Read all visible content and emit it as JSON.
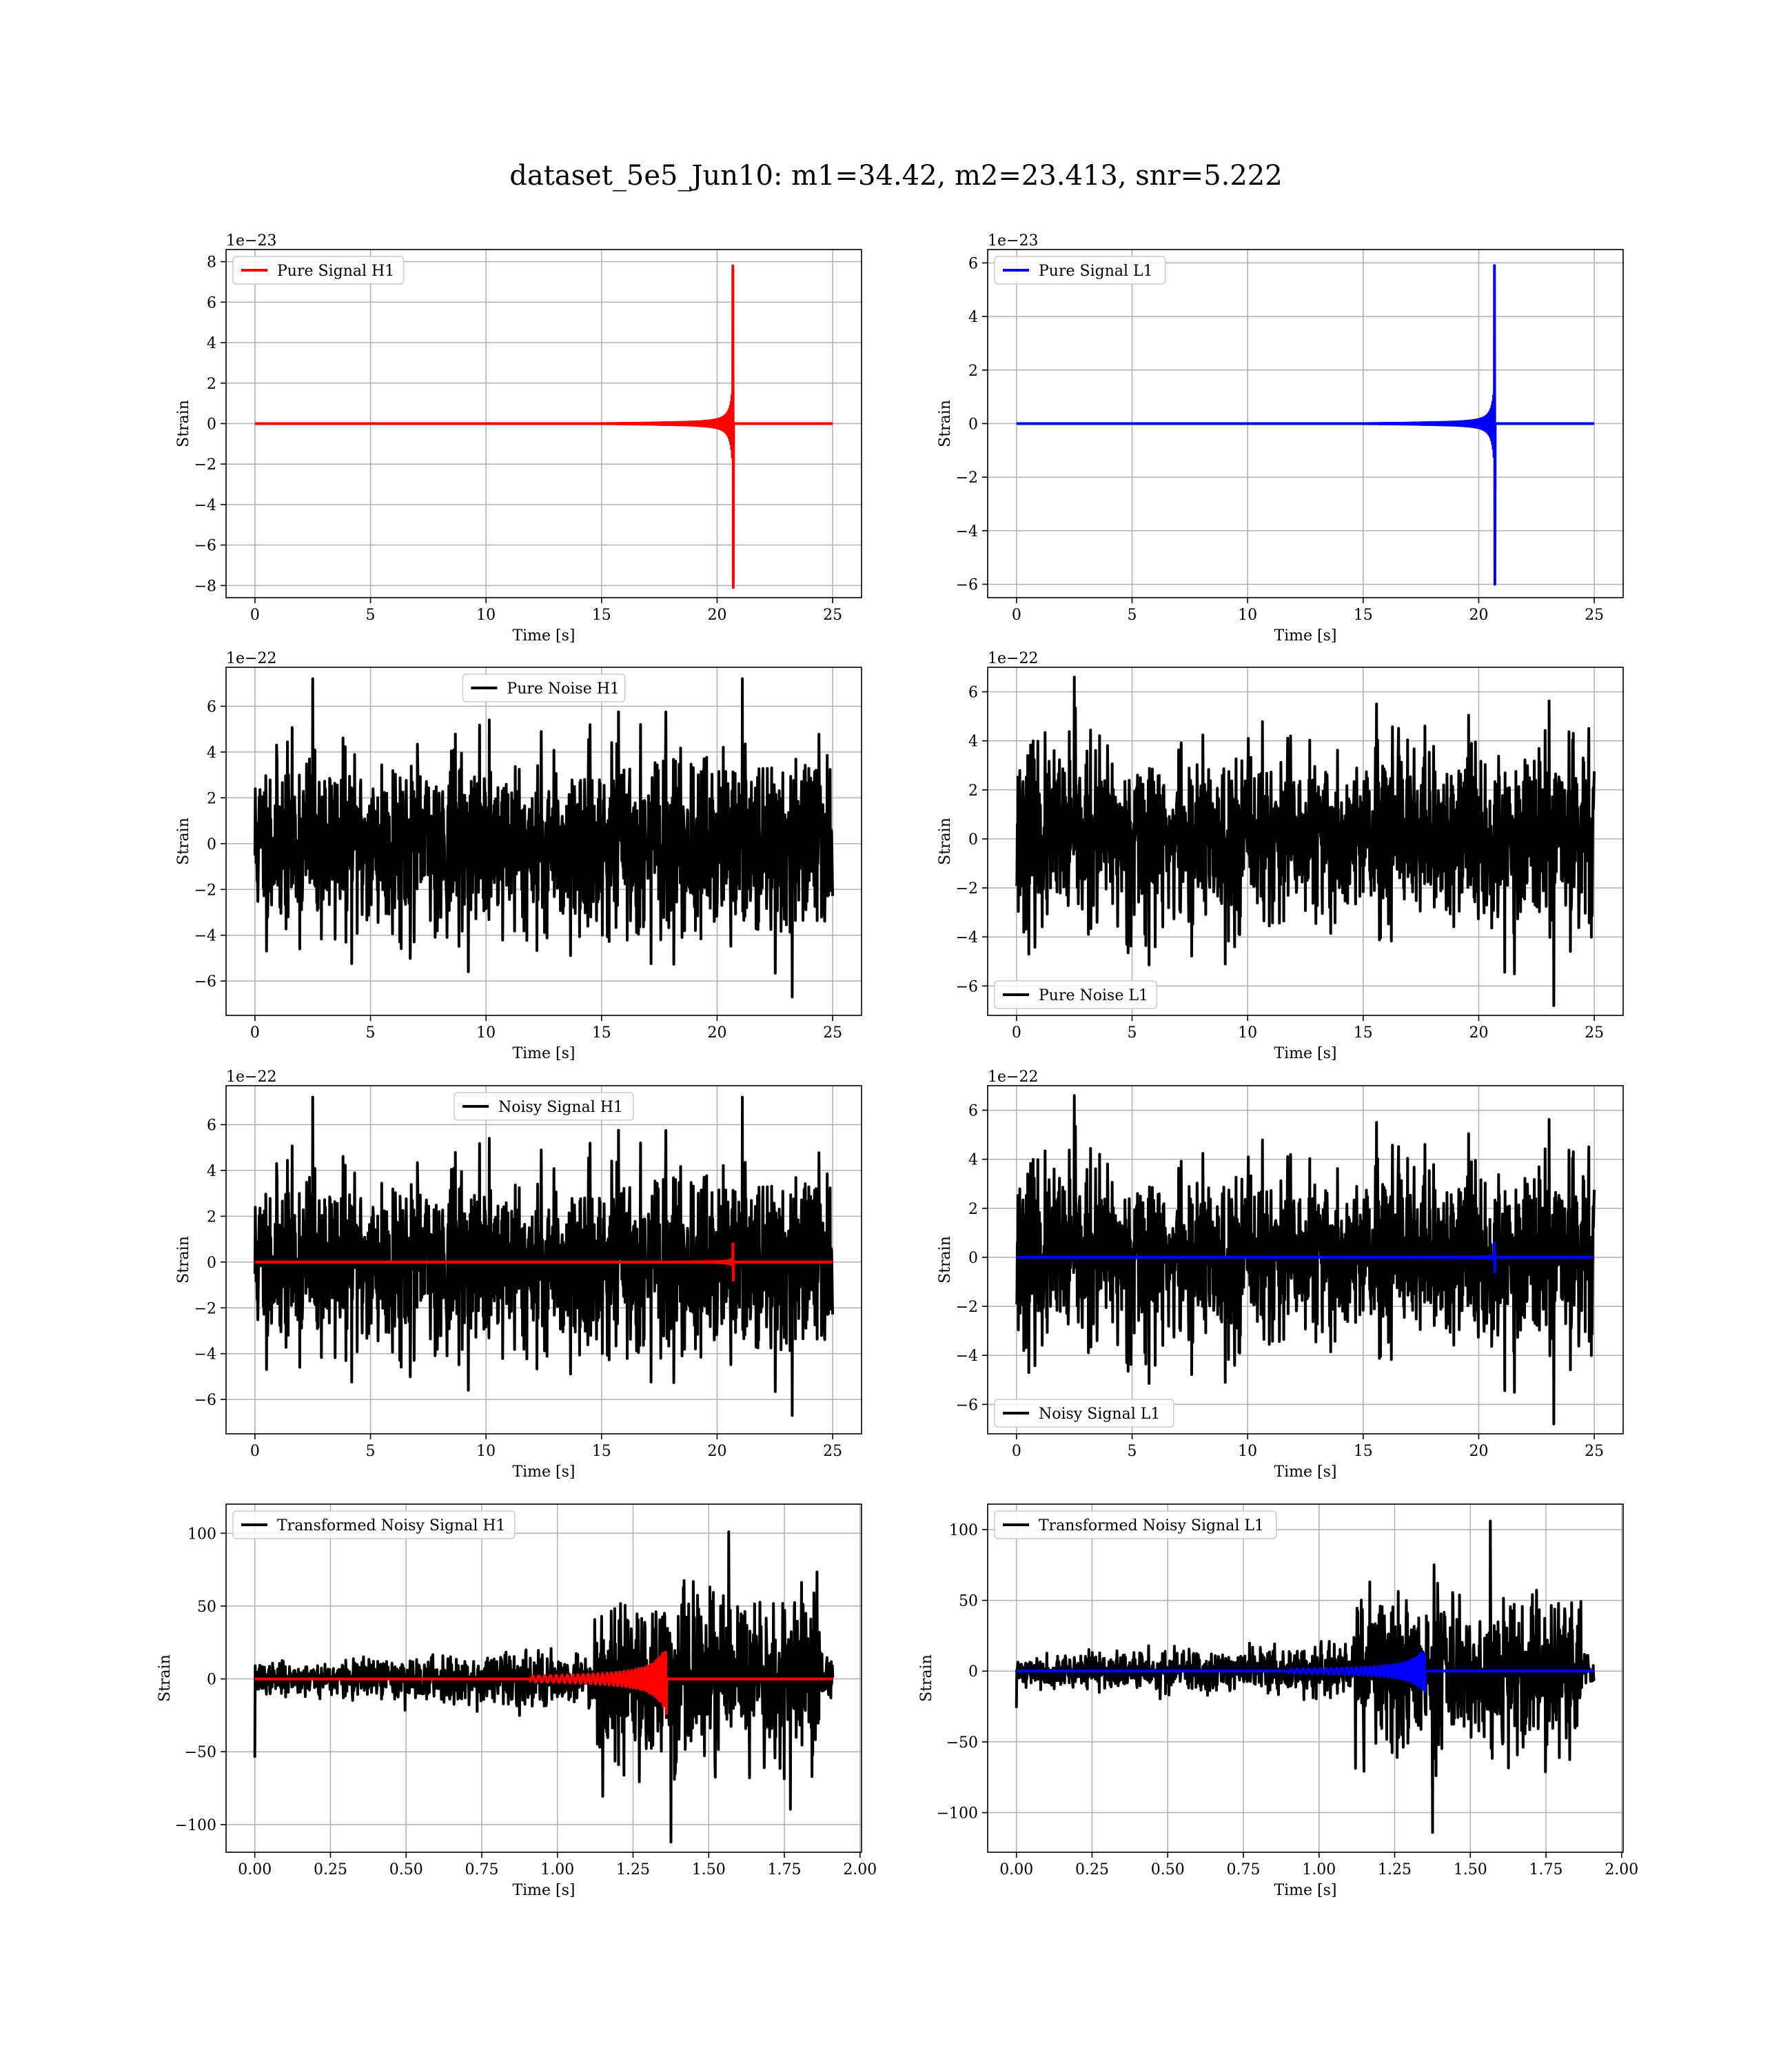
{
  "title": "dataset_5e5_Jun10: m1=34.42, m2=23.413, snr=5.222",
  "chart_data": [
    {
      "type": "line",
      "panel": "pure-signal-h1",
      "legend": "upper left",
      "xlabel": "Time [s]",
      "ylabel": "Strain",
      "offset": "1e−23",
      "xlim": [
        -1.25,
        26.25
      ],
      "ylim": [
        -8.6,
        8.6
      ],
      "xticks": [
        0,
        5,
        10,
        15,
        20,
        25
      ],
      "yticks": [
        -8,
        -6,
        -4,
        -2,
        0,
        2,
        4,
        6,
        8
      ],
      "grid": true,
      "series": [
        {
          "name": "Pure Signal H1",
          "color": "#ff0000",
          "kind": "chirp",
          "t_start": 0,
          "t_end": 25,
          "t_merger": 20.7,
          "peak": 7.8,
          "trough": -8.1,
          "scale": 1,
          "offset_y": 0
        }
      ]
    },
    {
      "type": "line",
      "panel": "pure-signal-l1",
      "legend": "upper left",
      "xlabel": "Time [s]",
      "ylabel": "Strain",
      "offset": "1e−23",
      "xlim": [
        -1.25,
        26.25
      ],
      "ylim": [
        -6.5,
        6.5
      ],
      "xticks": [
        0,
        5,
        10,
        15,
        20,
        25
      ],
      "yticks": [
        -6,
        -4,
        -2,
        0,
        2,
        4,
        6
      ],
      "grid": true,
      "series": [
        {
          "name": "Pure Signal L1",
          "color": "#0000ff",
          "kind": "chirp",
          "t_start": 0,
          "t_end": 25,
          "t_merger": 20.7,
          "peak": 5.9,
          "trough": -6.0,
          "scale": 1,
          "offset_y": 0
        }
      ]
    },
    {
      "type": "line",
      "panel": "pure-noise-h1",
      "legend": "upper center",
      "xlabel": "Time [s]",
      "ylabel": "Strain",
      "offset": "1e−22",
      "xlim": [
        -1.25,
        26.25
      ],
      "ylim": [
        -7.5,
        7.7
      ],
      "xticks": [
        0,
        5,
        10,
        15,
        20,
        25
      ],
      "yticks": [
        -6,
        -4,
        -2,
        0,
        2,
        4,
        6
      ],
      "grid": true,
      "series": [
        {
          "name": "Pure Noise H1",
          "color": "#000000",
          "kind": "noise",
          "t_start": 0,
          "t_end": 25,
          "band": 3.0,
          "max": 7.2,
          "min": -6.7,
          "seed": 11
        }
      ]
    },
    {
      "type": "line",
      "panel": "pure-noise-l1",
      "legend": "lower left",
      "xlabel": "Time [s]",
      "ylabel": "Strain",
      "offset": "1e−22",
      "xlim": [
        -1.25,
        26.25
      ],
      "ylim": [
        -7.2,
        7.0
      ],
      "xticks": [
        0,
        5,
        10,
        15,
        20,
        25
      ],
      "yticks": [
        -6,
        -4,
        -2,
        0,
        2,
        4,
        6
      ],
      "grid": true,
      "series": [
        {
          "name": "Pure Noise L1",
          "color": "#000000",
          "kind": "noise",
          "t_start": 0,
          "t_end": 25,
          "band": 2.8,
          "max": 6.6,
          "min": -6.8,
          "seed": 23
        }
      ]
    },
    {
      "type": "line",
      "panel": "noisy-signal-h1",
      "legend": "upper center",
      "xlabel": "Time [s]",
      "ylabel": "Strain",
      "offset": "1e−22",
      "xlim": [
        -1.25,
        26.25
      ],
      "ylim": [
        -7.5,
        7.7
      ],
      "xticks": [
        0,
        5,
        10,
        15,
        20,
        25
      ],
      "yticks": [
        -6,
        -4,
        -2,
        0,
        2,
        4,
        6
      ],
      "grid": true,
      "series": [
        {
          "name": "Noisy Signal H1",
          "color": "#000000",
          "kind": "noise",
          "t_start": 0,
          "t_end": 25,
          "band": 3.0,
          "max": 7.2,
          "min": -6.7,
          "seed": 11
        },
        {
          "name": "",
          "color": "#ff0000",
          "kind": "chirp",
          "t_start": 0,
          "t_end": 25,
          "t_merger": 20.7,
          "peak": 0.8,
          "trough": -0.8,
          "scale": 1,
          "offset_y": 0
        }
      ]
    },
    {
      "type": "line",
      "panel": "noisy-signal-l1",
      "legend": "lower left",
      "xlabel": "Time [s]",
      "ylabel": "Strain",
      "offset": "1e−22",
      "xlim": [
        -1.25,
        26.25
      ],
      "ylim": [
        -7.2,
        7.0
      ],
      "xticks": [
        0,
        5,
        10,
        15,
        20,
        25
      ],
      "yticks": [
        -6,
        -4,
        -2,
        0,
        2,
        4,
        6
      ],
      "grid": true,
      "series": [
        {
          "name": "Noisy Signal L1",
          "color": "#000000",
          "kind": "noise",
          "t_start": 0,
          "t_end": 25,
          "band": 2.8,
          "max": 6.6,
          "min": -6.8,
          "seed": 23
        },
        {
          "name": "",
          "color": "#0000ff",
          "kind": "chirp",
          "t_start": 0,
          "t_end": 25,
          "t_merger": 20.7,
          "peak": 0.6,
          "trough": -0.6,
          "scale": 1,
          "offset_y": 0
        }
      ]
    },
    {
      "type": "line",
      "panel": "transformed-noisy-signal-h1",
      "legend": "upper left",
      "xlabel": "Time [s]",
      "ylabel": "Strain",
      "offset": "",
      "xlim": [
        -0.095,
        2.005
      ],
      "ylim": [
        -119,
        120
      ],
      "xticks": [
        0.0,
        0.25,
        0.5,
        0.75,
        1.0,
        1.25,
        1.5,
        1.75,
        2.0
      ],
      "yticks": [
        -100,
        -50,
        0,
        50,
        100
      ],
      "grid": true,
      "series": [
        {
          "name": "Transformed Noisy Signal H1",
          "color": "#000000",
          "kind": "tnoise",
          "t_start": 0,
          "t_end": 1.91,
          "t_jump": 1.12,
          "t_drop": 1.87,
          "low": 6,
          "high": 50,
          "max": 101,
          "min": -112,
          "first": -54,
          "seed": 37
        },
        {
          "name": "",
          "color": "#ff0000",
          "kind": "tchirp",
          "t_start": 0,
          "t_end": 1.91,
          "t_merger": 1.36,
          "peak": 25,
          "trough": -25
        }
      ]
    },
    {
      "type": "line",
      "panel": "transformed-noisy-signal-l1",
      "legend": "upper left",
      "xlabel": "Time [s]",
      "ylabel": "Strain",
      "offset": "",
      "xlim": [
        -0.095,
        2.005
      ],
      "ylim": [
        -128,
        118
      ],
      "xticks": [
        0.0,
        0.25,
        0.5,
        0.75,
        1.0,
        1.25,
        1.5,
        1.75,
        2.0
      ],
      "yticks": [
        -100,
        -50,
        0,
        50,
        100
      ],
      "grid": true,
      "series": [
        {
          "name": "Transformed Noisy Signal L1",
          "color": "#000000",
          "kind": "tnoise",
          "t_start": 0,
          "t_end": 1.91,
          "t_jump": 1.12,
          "t_drop": 1.87,
          "low": 6,
          "high": 48,
          "max": 106,
          "min": -114,
          "first": -26,
          "seed": 41
        },
        {
          "name": "",
          "color": "#0000ff",
          "kind": "tchirp",
          "t_start": 0,
          "t_end": 1.91,
          "t_merger": 1.35,
          "peak": 18,
          "trough": -18
        }
      ]
    }
  ]
}
